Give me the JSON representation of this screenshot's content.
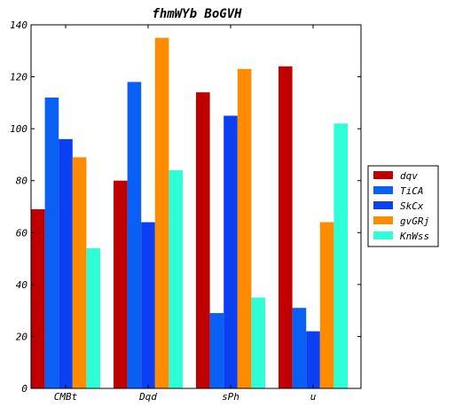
{
  "chart_data": {
    "type": "bar",
    "title": "fhmWYb BoGVH",
    "xlabel": "",
    "ylabel": "",
    "categories": [
      "CMBt",
      "Dqd",
      "sPh",
      "u"
    ],
    "series": [
      {
        "name": "dqv",
        "color": "#c00000",
        "values": [
          69,
          80,
          114,
          124
        ]
      },
      {
        "name": "TiCA",
        "color": "#0a5ff5",
        "values": [
          112,
          118,
          29,
          31
        ]
      },
      {
        "name": "SkCx",
        "color": "#0b3ff2",
        "values": [
          96,
          64,
          105,
          22
        ]
      },
      {
        "name": "gvGRj",
        "color": "#ff8c00",
        "values": [
          89,
          135,
          123,
          64
        ]
      },
      {
        "name": "KnWss",
        "color": "#2effd6",
        "values": [
          54,
          84,
          35,
          102
        ]
      }
    ],
    "ylim": [
      0,
      140
    ],
    "yticks": [
      0,
      20,
      40,
      60,
      80,
      100,
      120,
      140
    ],
    "grid": false,
    "legend_position": "right"
  }
}
